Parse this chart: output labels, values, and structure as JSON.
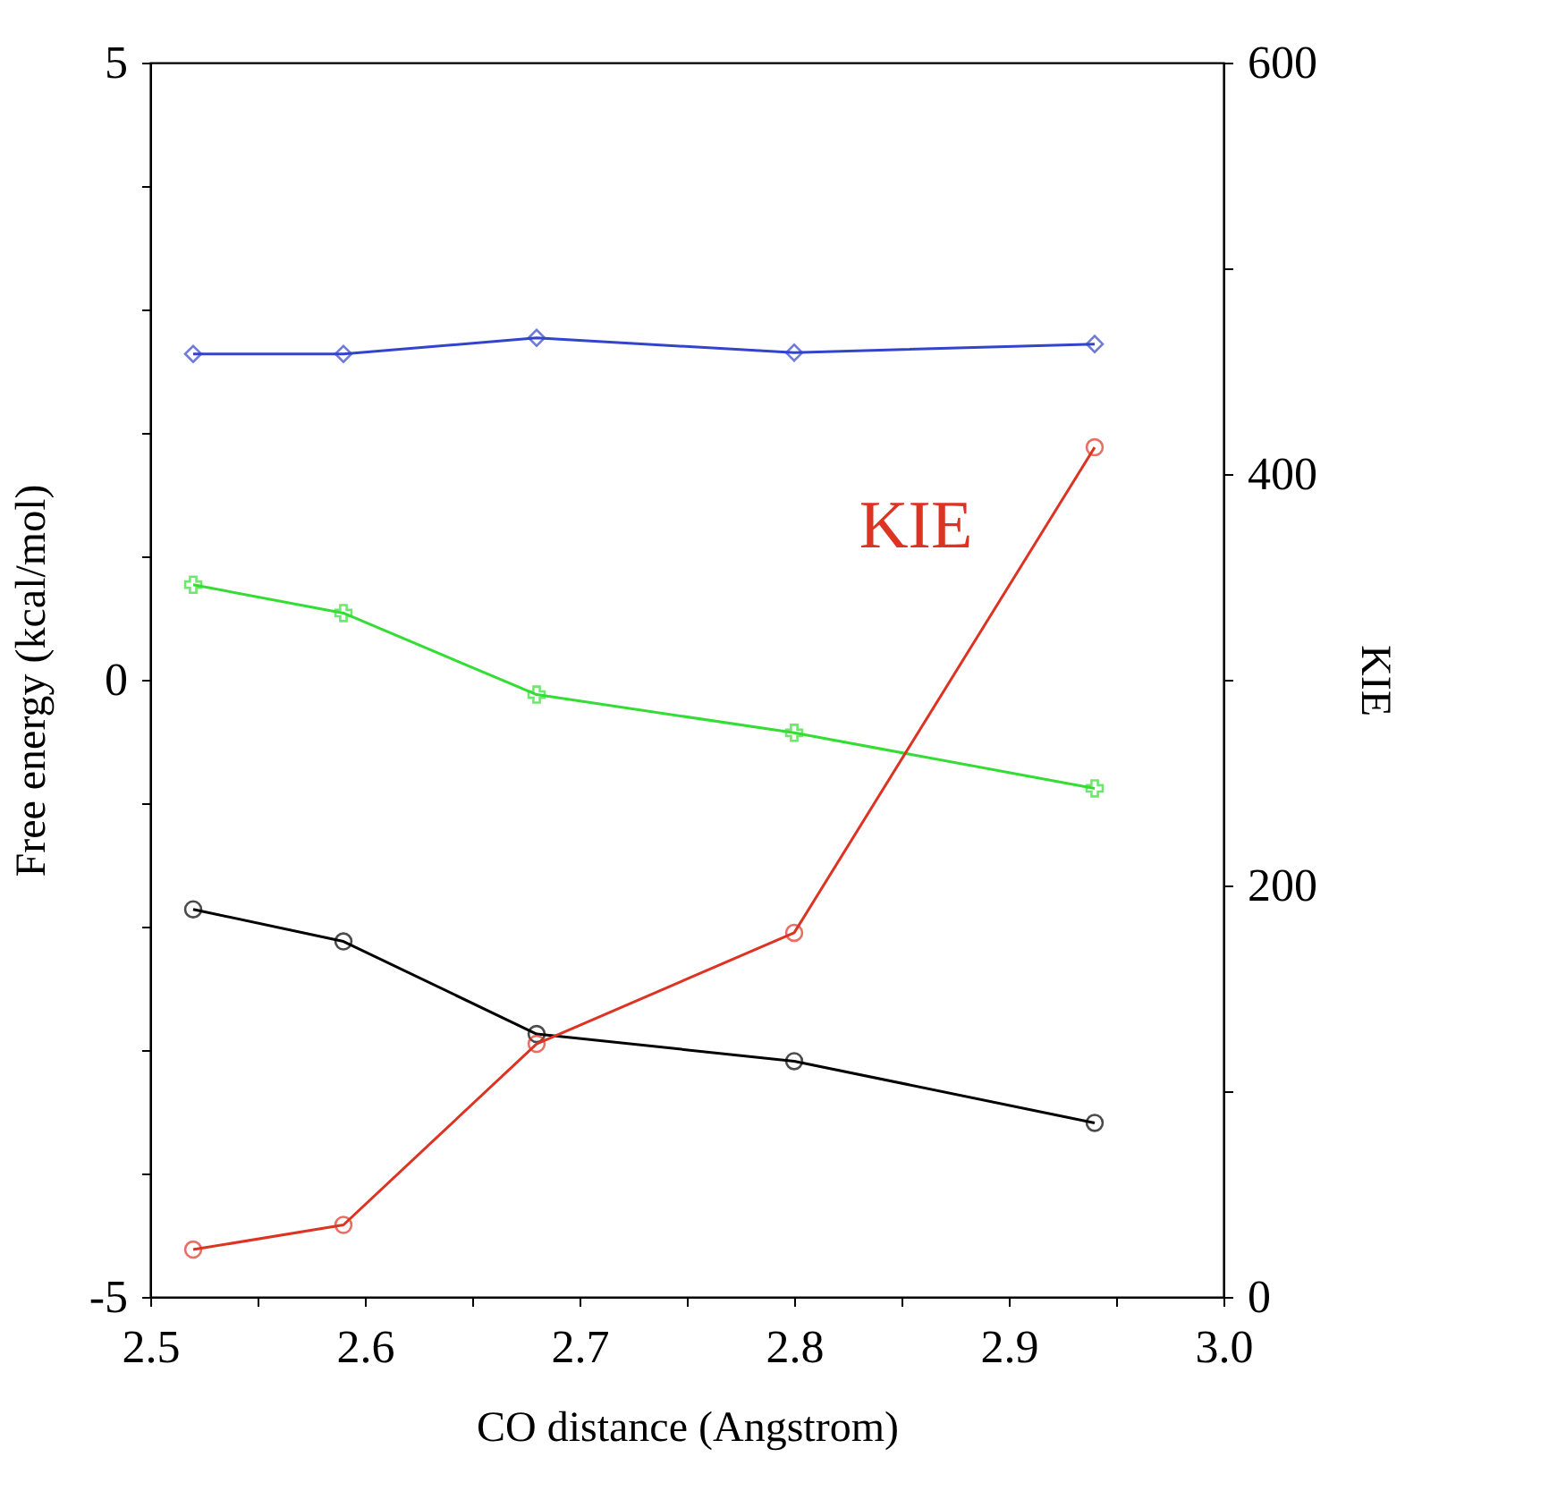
{
  "chart_data": {
    "type": "line",
    "xlabel": "CO distance (Angstrom)",
    "ylabel": "Free energy (kcal/mol)",
    "y2label": "KIE",
    "x": [
      2.52,
      2.59,
      2.68,
      2.8,
      2.94
    ],
    "xlim": [
      2.5,
      3.0
    ],
    "xticks": [
      2.5,
      {
        "value": 2.55,
        "label": null
      },
      2.6,
      {
        "value": 2.65,
        "label": null
      },
      2.7,
      {
        "value": 2.75,
        "label": null
      },
      2.8,
      {
        "value": 2.85,
        "label": null
      },
      2.9,
      {
        "value": 2.95,
        "label": null
      },
      {
        "value": 3.0,
        "label": "3.0"
      }
    ],
    "ylim": [
      -5,
      5
    ],
    "yticks": [
      -5,
      {
        "value": -4,
        "label": null
      },
      {
        "value": -3,
        "label": null
      },
      {
        "value": -2,
        "label": null
      },
      {
        "value": -1,
        "label": null
      },
      0,
      {
        "value": 1,
        "label": null
      },
      {
        "value": 2,
        "label": null
      },
      {
        "value": 3,
        "label": null
      },
      {
        "value": 4,
        "label": null
      },
      5
    ],
    "y2lim": [
      0,
      600
    ],
    "y2ticks": [
      0,
      {
        "value": 100,
        "label": null
      },
      200,
      {
        "value": 300,
        "label": null
      },
      400,
      {
        "value": 500,
        "label": null
      },
      600
    ],
    "grid": false,
    "line_style": "solid",
    "series": [
      {
        "color": "#3344cc",
        "marker": "diamond",
        "values": [
          2.64,
          2.64,
          2.77,
          2.65,
          2.72
        ]
      },
      {
        "color": "#33dd33",
        "marker": "cross",
        "values": [
          0.77,
          0.54,
          -0.12,
          -0.43,
          -0.88
        ]
      },
      {
        "color": "#000000",
        "marker": "circle",
        "values": [
          -1.86,
          -2.12,
          -2.87,
          -3.09,
          -3.59
        ]
      },
      {
        "name": "KIE",
        "color": "#dd3322",
        "marker": "circle",
        "axis": "y2",
        "values": [
          23,
          35,
          123,
          177,
          413
        ]
      }
    ]
  }
}
